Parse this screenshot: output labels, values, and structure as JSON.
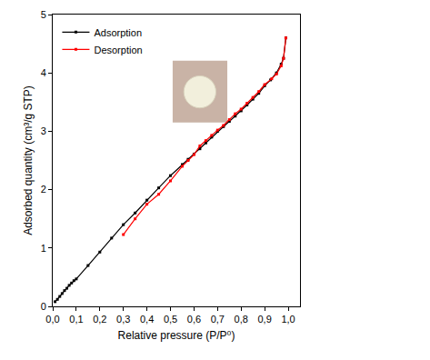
{
  "chart_data": {
    "type": "line",
    "x_label": "Relative pressure (P/P⁰)",
    "y_label": "Adsorbed quantity (cm³/g STP)",
    "xlim": [
      0,
      1.05
    ],
    "ylim": [
      0,
      5
    ],
    "xticks": [
      {
        "value": 0,
        "label": "0,0"
      },
      {
        "value": 0.1,
        "label": "0,1"
      },
      {
        "value": 0.2,
        "label": "0,2"
      },
      {
        "value": 0.3,
        "label": "0,3"
      },
      {
        "value": 0.4,
        "label": "0,4"
      },
      {
        "value": 0.5,
        "label": "0,5"
      },
      {
        "value": 0.6,
        "label": "0,6"
      },
      {
        "value": 0.7,
        "label": "0,7"
      },
      {
        "value": 0.8,
        "label": "0,8"
      },
      {
        "value": 0.9,
        "label": "0,9"
      },
      {
        "value": 1.0,
        "label": "1,0"
      }
    ],
    "yticks": [
      0,
      1,
      2,
      3,
      4,
      5
    ],
    "grid": false,
    "legend": "top left",
    "series": [
      {
        "name": "Adsorption",
        "color": "#000000",
        "marker": "square",
        "line_style": "solid",
        "x": [
          0.01,
          0.02,
          0.03,
          0.04,
          0.05,
          0.06,
          0.07,
          0.08,
          0.09,
          0.1,
          0.15,
          0.2,
          0.25,
          0.3,
          0.35,
          0.4,
          0.45,
          0.5,
          0.55,
          0.575,
          0.6,
          0.625,
          0.65,
          0.675,
          0.7,
          0.725,
          0.75,
          0.775,
          0.8,
          0.825,
          0.85,
          0.875,
          0.9,
          0.925,
          0.95,
          0.97,
          0.98,
          0.99
        ],
        "values": [
          0.08,
          0.12,
          0.17,
          0.22,
          0.27,
          0.31,
          0.36,
          0.4,
          0.44,
          0.47,
          0.7,
          0.93,
          1.17,
          1.4,
          1.6,
          1.82,
          2.03,
          2.24,
          2.43,
          2.52,
          2.61,
          2.7,
          2.8,
          2.9,
          3.0,
          3.08,
          3.17,
          3.26,
          3.35,
          3.45,
          3.55,
          3.65,
          3.78,
          3.88,
          4.0,
          4.15,
          4.25,
          4.6
        ]
      },
      {
        "name": "Desorption",
        "color": "#ff0000",
        "marker": "square",
        "line_style": "solid",
        "x": [
          0.99,
          0.98,
          0.97,
          0.95,
          0.93,
          0.9,
          0.875,
          0.85,
          0.825,
          0.8,
          0.775,
          0.75,
          0.725,
          0.7,
          0.675,
          0.65,
          0.625,
          0.6,
          0.575,
          0.55,
          0.5,
          0.45,
          0.4,
          0.35,
          0.3
        ],
        "values": [
          4.6,
          4.25,
          4.12,
          3.98,
          3.9,
          3.8,
          3.68,
          3.58,
          3.48,
          3.38,
          3.3,
          3.2,
          3.1,
          3.02,
          2.93,
          2.84,
          2.75,
          2.6,
          2.5,
          2.4,
          2.15,
          1.92,
          1.75,
          1.5,
          1.23
        ]
      }
    ]
  }
}
